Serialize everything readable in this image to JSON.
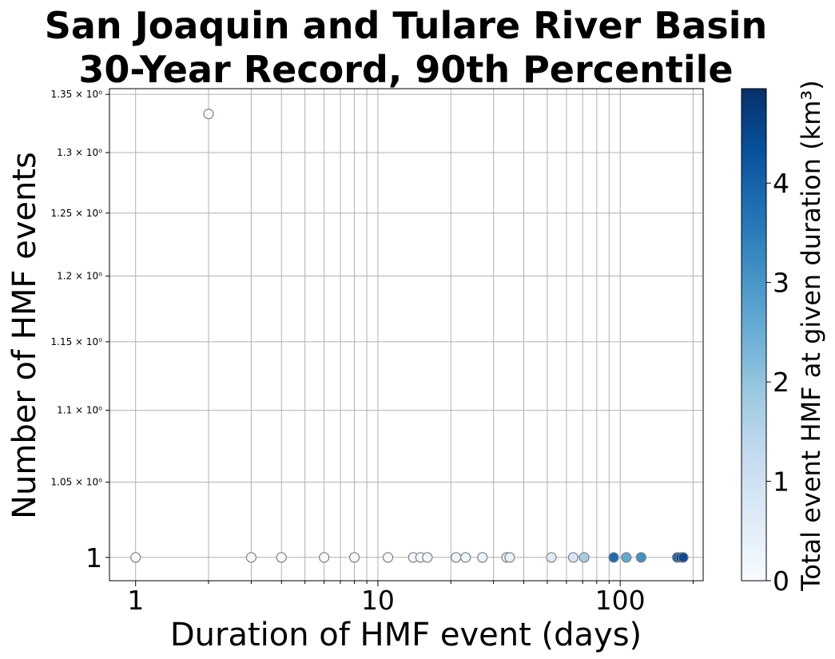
{
  "chart_data": {
    "type": "scatter",
    "title": [
      "San Joaquin and Tulare River Basin",
      "30-Year Record, 90th Percentile"
    ],
    "xlabel": "Duration of HMF event (days)",
    "ylabel": "Number of HMF events",
    "x_scale": "log",
    "y_scale": "log",
    "xlim": [
      0.78,
      220
    ],
    "ylim": [
      0.985,
      1.355
    ],
    "x_ticks": [
      {
        "value": 1,
        "label": "1"
      },
      {
        "value": 10,
        "label": "10"
      },
      {
        "value": 100,
        "label": "100"
      }
    ],
    "y_ticks": [
      {
        "value": 1.0,
        "label": "1"
      },
      {
        "value": 1.05,
        "label": "1.05 × 10⁰"
      },
      {
        "value": 1.1,
        "label": "1.1 × 10⁰"
      },
      {
        "value": 1.15,
        "label": "1.15 × 10⁰"
      },
      {
        "value": 1.2,
        "label": "1.2 × 10⁰"
      },
      {
        "value": 1.25,
        "label": "1.25 × 10⁰"
      },
      {
        "value": 1.3,
        "label": "1.3 × 10⁰"
      },
      {
        "value": 1.35,
        "label": "1.35 × 10⁰"
      }
    ],
    "grid": true,
    "colorbar": {
      "label": "Total event HMF at given duration (km³)",
      "colormap": "Blues",
      "range": [
        0,
        4.95
      ],
      "ticks": [
        0,
        1,
        2,
        3,
        4
      ]
    },
    "points": [
      {
        "x": 1,
        "y": 1,
        "c": 0.02
      },
      {
        "x": 2,
        "y": 1.333,
        "c": 0.05
      },
      {
        "x": 3,
        "y": 1,
        "c": 0.03
      },
      {
        "x": 4,
        "y": 1,
        "c": 0.04
      },
      {
        "x": 6,
        "y": 1,
        "c": 0.05
      },
      {
        "x": 8,
        "y": 1,
        "c": 0.06
      },
      {
        "x": 11,
        "y": 1,
        "c": 0.08
      },
      {
        "x": 14,
        "y": 1,
        "c": 0.1
      },
      {
        "x": 15,
        "y": 1,
        "c": 0.12
      },
      {
        "x": 16,
        "y": 1,
        "c": 0.15
      },
      {
        "x": 21,
        "y": 1,
        "c": 0.2
      },
      {
        "x": 23,
        "y": 1,
        "c": 0.25
      },
      {
        "x": 27,
        "y": 1,
        "c": 0.3
      },
      {
        "x": 34,
        "y": 1,
        "c": 0.35
      },
      {
        "x": 35,
        "y": 1,
        "c": 0.4
      },
      {
        "x": 52,
        "y": 1,
        "c": 0.6
      },
      {
        "x": 64,
        "y": 1,
        "c": 0.8
      },
      {
        "x": 71,
        "y": 1,
        "c": 1.7
      },
      {
        "x": 94,
        "y": 1,
        "c": 3.8
      },
      {
        "x": 106,
        "y": 1,
        "c": 2.6
      },
      {
        "x": 122,
        "y": 1,
        "c": 3.1
      },
      {
        "x": 172,
        "y": 1,
        "c": 3.9
      },
      {
        "x": 178,
        "y": 1,
        "c": 4.8
      },
      {
        "x": 182,
        "y": 1,
        "c": 4.4
      }
    ]
  }
}
